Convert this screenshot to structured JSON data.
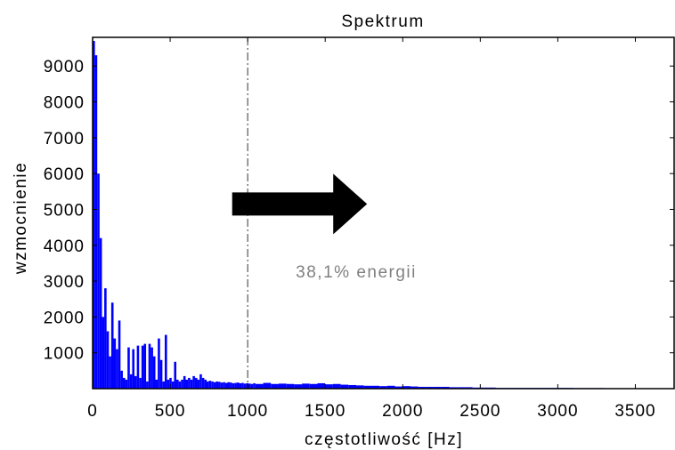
{
  "chart_data": {
    "type": "bar",
    "title": "Spektrum",
    "xlabel": "częstotliwość [Hz]",
    "ylabel": "wzmocnienie",
    "xlim": [
      0,
      3750
    ],
    "ylim": [
      0,
      9800
    ],
    "xticks": [
      0,
      500,
      1000,
      1500,
      2000,
      2500,
      3000,
      3500
    ],
    "yticks": [
      1000,
      2000,
      3000,
      4000,
      5000,
      6000,
      7000,
      8000,
      9000
    ],
    "grid": false,
    "series": [
      {
        "color": "#0000ff",
        "x": [
          0,
          15,
          30,
          45,
          60,
          75,
          90,
          105,
          120,
          135,
          150,
          165,
          180,
          195,
          210,
          225,
          240,
          255,
          270,
          285,
          300,
          315,
          330,
          345,
          360,
          375,
          390,
          405,
          420,
          435,
          450,
          465,
          480,
          495,
          510,
          525,
          540,
          555,
          570,
          585,
          600,
          615,
          630,
          645,
          660,
          675,
          690,
          705,
          720,
          735,
          750,
          765,
          780,
          795,
          810,
          825,
          840,
          855,
          870,
          885,
          900,
          915,
          930,
          945,
          960,
          975,
          990,
          1005,
          1020,
          1035,
          1050,
          1100,
          1150,
          1200,
          1250,
          1300,
          1350,
          1400,
          1450,
          1500,
          1550,
          1600,
          1650,
          1700,
          1750,
          1800,
          1850,
          1900,
          1950,
          2000,
          2050,
          2100,
          2150,
          2200,
          2250,
          2300,
          2350,
          2400,
          2450,
          2500,
          2550,
          2600,
          2700,
          2800,
          2900,
          3000,
          3100,
          3200,
          3300,
          3400,
          3500,
          3600,
          3700
        ],
        "values": [
          9700,
          9300,
          6000,
          4200,
          2000,
          2800,
          1600,
          900,
          2400,
          1400,
          1100,
          1900,
          500,
          300,
          250,
          1150,
          400,
          1100,
          350,
          1200,
          300,
          1200,
          1250,
          200,
          1250,
          1150,
          900,
          250,
          1400,
          800,
          200,
          1500,
          250,
          300,
          200,
          750,
          250,
          200,
          250,
          350,
          250,
          300,
          250,
          350,
          300,
          250,
          400,
          300,
          250,
          200,
          220,
          200,
          180,
          200,
          190,
          170,
          180,
          160,
          180,
          170,
          150,
          160,
          170,
          150,
          160,
          140,
          150,
          140,
          130,
          150,
          130,
          160,
          130,
          140,
          130,
          120,
          140,
          130,
          150,
          120,
          130,
          110,
          100,
          90,
          80,
          80,
          70,
          80,
          60,
          70,
          60,
          50,
          50,
          50,
          50,
          40,
          40,
          40,
          30,
          30,
          30,
          20,
          20,
          20,
          20,
          20,
          15,
          15,
          10,
          10,
          10,
          10,
          10
        ]
      }
    ],
    "vline": {
      "x": 1000
    },
    "annotations": [
      {
        "text": "38,1% energii",
        "x": 1700,
        "y": 3100,
        "color": "#808080"
      }
    ],
    "arrow": {
      "x_from": 900,
      "x_to": 1770,
      "y": 5150,
      "color": "#000000"
    }
  }
}
